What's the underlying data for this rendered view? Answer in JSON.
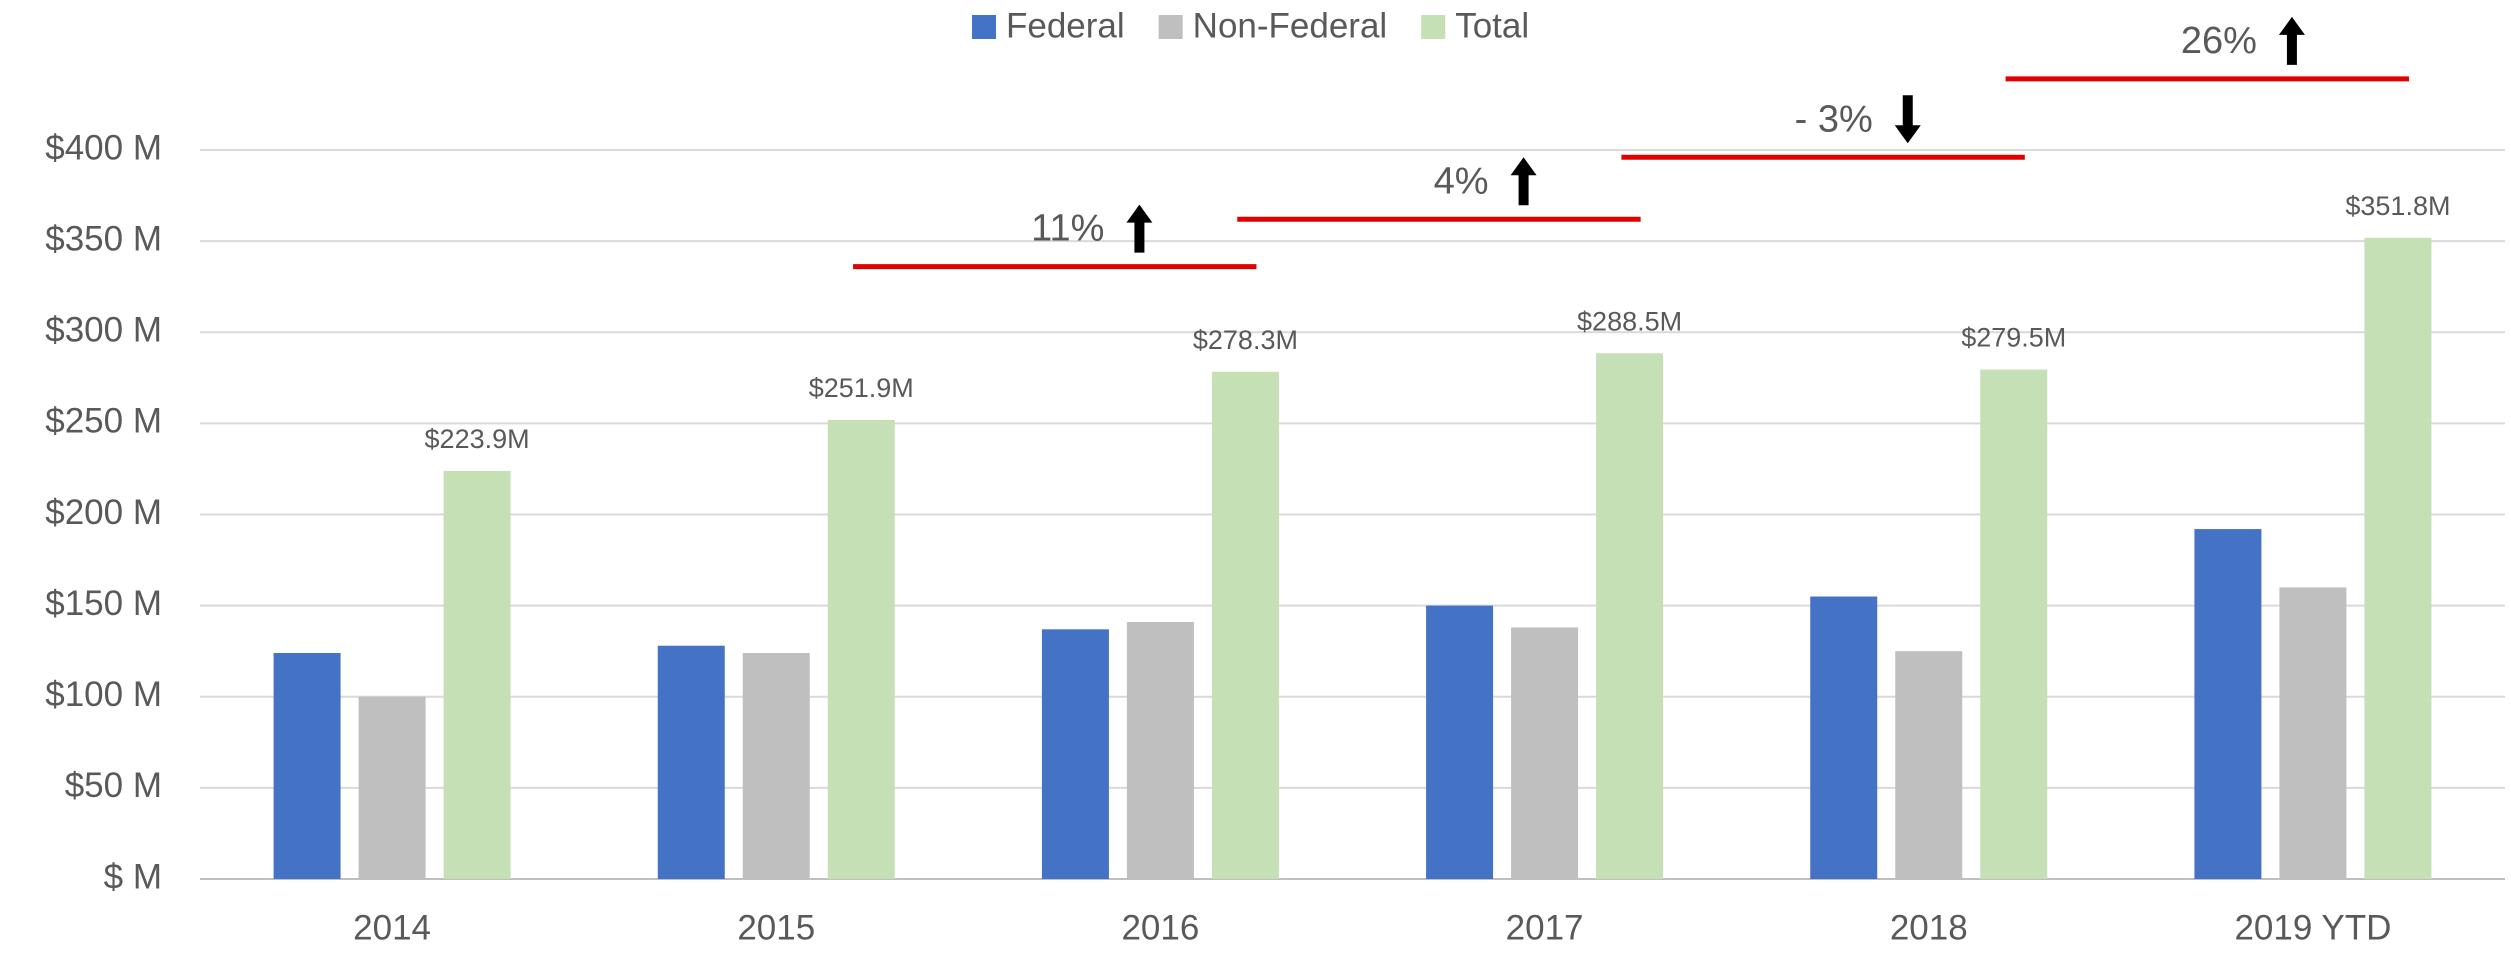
{
  "chart_data": {
    "type": "bar",
    "categories": [
      "2014",
      "2015",
      "2016",
      "2017",
      "2018",
      "2019 YTD"
    ],
    "series": [
      {
        "name": "Federal",
        "color": "#4472c4",
        "values": [
          124,
          128,
          137,
          150,
          155,
          192
        ]
      },
      {
        "name": "Non-Federal",
        "color": "#bfbfbf",
        "values": [
          100,
          124,
          141,
          138,
          125,
          160
        ]
      },
      {
        "name": "Total",
        "color": "#c5e0b4",
        "values": [
          223.9,
          251.9,
          278.3,
          288.5,
          279.5,
          351.8
        ],
        "value_labels": [
          "$223.9M",
          "$251.9M",
          "$278.3M",
          "$288.5M",
          "$279.5M",
          "$351.8M"
        ]
      }
    ],
    "ylim": [
      0,
      400
    ],
    "yticks": [
      {
        "value": 0,
        "label": "$ M"
      },
      {
        "value": 50,
        "label": "$50 M"
      },
      {
        "value": 100,
        "label": "$100 M"
      },
      {
        "value": 150,
        "label": "$150 M"
      },
      {
        "value": 200,
        "label": "$200 M"
      },
      {
        "value": 250,
        "label": "$250 M"
      },
      {
        "value": 300,
        "label": "$300 M"
      },
      {
        "value": 350,
        "label": "$350 M"
      },
      {
        "value": 400,
        "label": "$400 M"
      }
    ],
    "grid": true,
    "legend": "top",
    "annotations": [
      {
        "text": "11%",
        "direction": "up",
        "at": "2016",
        "y": 336,
        "color": "#e00000"
      },
      {
        "text": "4%",
        "direction": "up",
        "at": "2017",
        "y": 362,
        "color": "#e00000"
      },
      {
        "text": "- 3%",
        "direction": "down",
        "at": "2018",
        "y": 396,
        "color": "#e00000"
      },
      {
        "text": "26%",
        "direction": "up",
        "at": "2019 YTD",
        "y": 439,
        "color": "#e00000"
      }
    ]
  }
}
